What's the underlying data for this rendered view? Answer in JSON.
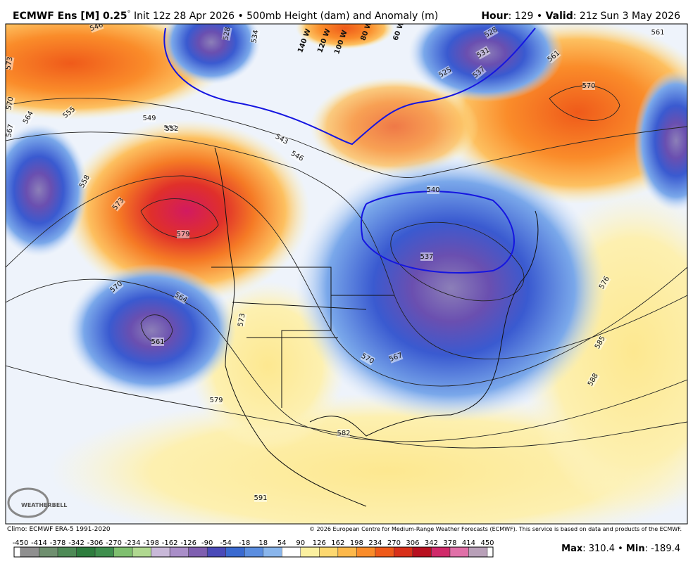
{
  "header": {
    "title_bold": "ECMWF Ens [M] 0.25",
    "degree": "°",
    "title_rest": "Init 12z 28 Apr 2026 • 500mb Height (dam) and Anomaly (m)",
    "right": [
      "Hour",
      ": 129 • ",
      "Valid",
      ": 21z Sun 3 May 2026"
    ]
  },
  "map": {
    "contour_labels": [
      "546",
      "528",
      "534",
      "573",
      "570",
      "564",
      "555",
      "549",
      "552",
      "543",
      "546",
      "567",
      "558",
      "573",
      "579",
      "540",
      "537",
      "525",
      "531",
      "528",
      "537",
      "561",
      "570",
      "561",
      "570",
      "564",
      "561",
      "573",
      "570",
      "567",
      "576",
      "585",
      "588",
      "579",
      "582",
      "591",
      "552"
    ],
    "longitudes": [
      "140 W",
      "120 W",
      "100 W",
      "80 W",
      "60 W"
    ],
    "logo": "WEATHERBELL"
  },
  "footer": {
    "climo": "Climo: ECMWF ERA-5 1991-2020",
    "copyright": "© 2026 European Centre for Medium-Range Weather Forecasts (ECMWF). This service is based on data and products of the ECMWF.",
    "stats": [
      "Max",
      ": 310.4 • ",
      "Min",
      ": -189.4"
    ]
  },
  "colorbar": {
    "ticks": [
      -450,
      -414,
      -378,
      -342,
      -306,
      -270,
      -234,
      -198,
      -162,
      -126,
      -90,
      -54,
      -18,
      18,
      54,
      90,
      126,
      162,
      198,
      234,
      270,
      306,
      342,
      378,
      414,
      450
    ],
    "colors": [
      "#8f8f8f",
      "#6f8f6f",
      "#4e8a56",
      "#2e7d3e",
      "#3f8f4e",
      "#7fbf6f",
      "#b0d890",
      "#c8b8d8",
      "#a98ec8",
      "#7f5fb0",
      "#4a4ab8",
      "#3a6ad0",
      "#5b8ee0",
      "#8ab6ec",
      "#ffffff",
      "#fbf0a0",
      "#fdd870",
      "#fdb84a",
      "#fa8c2a",
      "#ef5a1a",
      "#d8301a",
      "#b81020",
      "#d02a6a",
      "#e070a8",
      "#b8a0b8"
    ]
  }
}
